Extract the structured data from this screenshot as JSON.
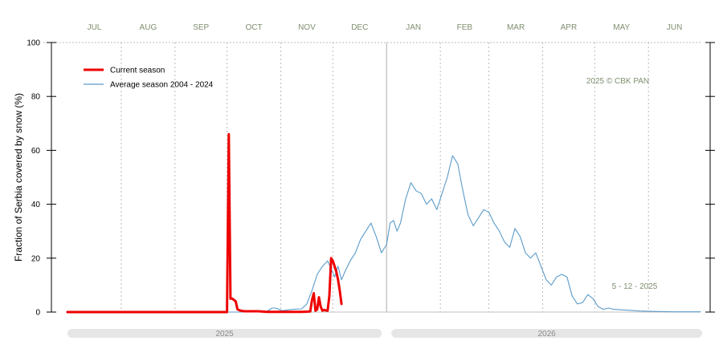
{
  "chart_data": {
    "type": "line",
    "ylabel": "Fraction of  Serbia  covered by snow (%)",
    "ylim": [
      0,
      100
    ],
    "yticks": [
      0,
      20,
      40,
      60,
      80,
      100
    ],
    "months": [
      "JUL",
      "AUG",
      "SEP",
      "OCT",
      "NOV",
      "DEC",
      "JAN",
      "FEB",
      "MAR",
      "APR",
      "MAY",
      "JUN"
    ],
    "year_labels": [
      "2025",
      "2026"
    ],
    "annotations": {
      "copyright": "2025  © CBK PAN",
      "date": "5 - 12 - 2025"
    },
    "grid": "vertical dotted at month boundaries",
    "legend_placement": "top-left",
    "series": [
      {
        "name": "Current season",
        "color": "#ee0000",
        "x": [
          0,
          20,
          40,
          60,
          80,
          92,
          93,
          94,
          95,
          96,
          97,
          98,
          100,
          102,
          104,
          110,
          115,
          120,
          125,
          130,
          135,
          140,
          141,
          142,
          143,
          144,
          145,
          146,
          147,
          148,
          149,
          150,
          151,
          152,
          153,
          154,
          155,
          156,
          157,
          158
        ],
        "values": [
          0,
          0,
          0,
          0,
          0,
          0,
          66,
          5,
          5,
          4.5,
          4,
          1,
          0.5,
          0.3,
          0.3,
          0.3,
          0.1,
          0.1,
          0.1,
          0.1,
          0.1,
          0.2,
          4.5,
          7,
          0.5,
          1,
          5.5,
          2,
          0.5,
          0.8,
          0.6,
          0.5,
          6,
          20,
          19,
          17,
          15,
          12,
          8,
          3
        ]
      },
      {
        "name": "Average season 2004 - 2024",
        "color": "#5b9bc9",
        "x": [
          0,
          20,
          40,
          60,
          80,
          100,
          110,
          115,
          118,
          120,
          124,
          127,
          130,
          135,
          138,
          141,
          144,
          147,
          150,
          152,
          154,
          156,
          158,
          160,
          163,
          166,
          169,
          172,
          175,
          178,
          181,
          184,
          186,
          188,
          190,
          192,
          195,
          198,
          201,
          204,
          207,
          210,
          213,
          216,
          219,
          222,
          225,
          228,
          231,
          234,
          237,
          240,
          243,
          246,
          249,
          252,
          255,
          258,
          261,
          264,
          267,
          270,
          273,
          276,
          279,
          282,
          285,
          288,
          291,
          294,
          297,
          300,
          303,
          306,
          309,
          312,
          315,
          320,
          330,
          340,
          350,
          365
        ],
        "values": [
          0,
          0,
          0,
          0,
          0,
          0,
          0.2,
          0.3,
          1.5,
          1.5,
          0.5,
          0.8,
          1,
          1.2,
          3,
          8,
          14,
          17,
          19,
          16,
          13,
          17,
          12,
          15,
          19,
          22,
          27,
          30,
          33,
          28,
          22,
          25,
          33,
          34,
          30,
          33,
          42,
          48,
          45,
          44,
          40,
          42,
          38,
          44,
          50,
          58,
          55,
          45,
          36,
          32,
          35,
          38,
          37,
          33,
          30,
          26,
          24,
          31,
          28,
          22,
          20,
          22,
          17,
          12,
          10,
          13,
          14,
          13,
          6,
          3,
          3.5,
          6.5,
          5,
          2,
          1,
          1.5,
          1,
          0.8,
          0.4,
          0.2,
          0.1,
          0.1
        ]
      }
    ]
  }
}
